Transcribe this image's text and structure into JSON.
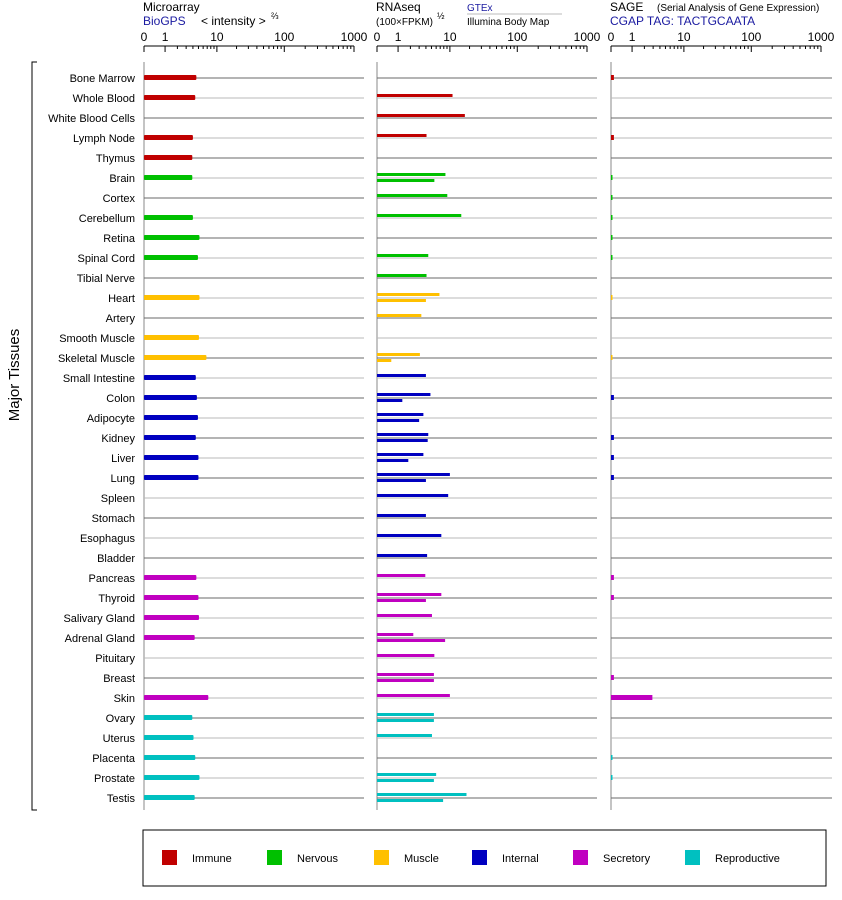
{
  "y_axis_label": "Major Tissues",
  "panels": {
    "microarray": {
      "title": "Microarray",
      "source": "BioGPS",
      "unit": "< intensity >",
      "unit_exp": "⅔"
    },
    "rnaseq": {
      "title": "RNAseq",
      "unit": "(100×FPKM)",
      "unit_exp": "½",
      "source_a": "GTEx",
      "source_b": "Illumina Body Map"
    },
    "sage": {
      "title": "SAGE",
      "subtitle": "(Serial Analysis of Gene Expression)",
      "tag": "CGAP  TAG: TACTGCAATA"
    }
  },
  "tick_labels": [
    "0",
    "1",
    "10",
    "100",
    "1000"
  ],
  "legend": [
    {
      "name": "Immune",
      "color": "#c00000"
    },
    {
      "name": "Nervous",
      "color": "#00c000"
    },
    {
      "name": "Muscle",
      "color": "#ffc000"
    },
    {
      "name": "Internal",
      "color": "#0000c0"
    },
    {
      "name": "Secretory",
      "color": "#c000c0"
    },
    {
      "name": "Reproductive",
      "color": "#00c0c0"
    }
  ],
  "chart_data": {
    "type": "bar",
    "orientation": "horizontal",
    "x_scale": "log",
    "xlim": [
      0,
      1000
    ],
    "tissues": [
      {
        "name": "Bone Marrow",
        "group": "Immune",
        "microarray": 4.6,
        "rnaseq": [],
        "sage": 0.1
      },
      {
        "name": "Whole Blood",
        "group": "Immune",
        "microarray": 4.4,
        "rnaseq": [
          11
        ],
        "sage": 0
      },
      {
        "name": "White Blood Cells",
        "group": "Immune",
        "microarray": null,
        "rnaseq": [
          17
        ],
        "sage": 0
      },
      {
        "name": "Lymph Node",
        "group": "Immune",
        "microarray": 4.0,
        "rnaseq": [
          4.1
        ],
        "sage": 0.1
      },
      {
        "name": "Thymus",
        "group": "Immune",
        "microarray": 3.9,
        "rnaseq": [],
        "sage": 0
      },
      {
        "name": "Brain",
        "group": "Nervous",
        "microarray": 3.9,
        "rnaseq": [
          8.5,
          5.6
        ],
        "sage": 0.05
      },
      {
        "name": "Cortex",
        "group": "Nervous",
        "microarray": null,
        "rnaseq": [
          9.1
        ],
        "sage": 0.05
      },
      {
        "name": "Cerebellum",
        "group": "Nervous",
        "microarray": 4.0,
        "rnaseq": [
          15
        ],
        "sage": 0.05
      },
      {
        "name": "Retina",
        "group": "Nervous",
        "microarray": 5.2,
        "rnaseq": [],
        "sage": 0.05
      },
      {
        "name": "Spinal Cord",
        "group": "Nervous",
        "microarray": 4.9,
        "rnaseq": [
          4.4
        ],
        "sage": 0.05
      },
      {
        "name": "Tibial Nerve",
        "group": "Nervous",
        "microarray": null,
        "rnaseq": [
          4.1
        ],
        "sage": 0
      },
      {
        "name": "Heart",
        "group": "Muscle",
        "microarray": 5.2,
        "rnaseq": [
          6.8,
          4.0
        ],
        "sage": 0.03
      },
      {
        "name": "Artery",
        "group": "Muscle",
        "microarray": null,
        "rnaseq": [
          3.3
        ],
        "sage": 0
      },
      {
        "name": "Smooth Muscle",
        "group": "Muscle",
        "microarray": 5.1,
        "rnaseq": [],
        "sage": 0
      },
      {
        "name": "Skeletal Muscle",
        "group": "Muscle",
        "microarray": 6.8,
        "rnaseq": [
          3.1,
          0.6
        ],
        "sage": 0.03
      },
      {
        "name": "Small Intestine",
        "group": "Internal",
        "microarray": 4.5,
        "rnaseq": [
          4.0
        ],
        "sage": 0
      },
      {
        "name": "Colon",
        "group": "Internal",
        "microarray": 4.7,
        "rnaseq": [
          4.8,
          1.3
        ],
        "sage": 0.1
      },
      {
        "name": "Adipocyte",
        "group": "Internal",
        "microarray": 4.9,
        "rnaseq": [
          3.6,
          3.0
        ],
        "sage": 0
      },
      {
        "name": "Kidney",
        "group": "Internal",
        "microarray": 4.5,
        "rnaseq": [
          4.4,
          4.3
        ],
        "sage": 0.1
      },
      {
        "name": "Liver",
        "group": "Internal",
        "microarray": 5.0,
        "rnaseq": [
          3.6,
          1.8
        ],
        "sage": 0.1
      },
      {
        "name": "Lung",
        "group": "Internal",
        "microarray": 5.0,
        "rnaseq": [
          10,
          4.0
        ],
        "sage": 0.1
      },
      {
        "name": "Spleen",
        "group": "Internal",
        "microarray": null,
        "rnaseq": [
          9.4
        ],
        "sage": 0
      },
      {
        "name": "Stomach",
        "group": "Internal",
        "microarray": null,
        "rnaseq": [
          4.0
        ],
        "sage": 0
      },
      {
        "name": "Esophagus",
        "group": "Internal",
        "microarray": null,
        "rnaseq": [
          7.3
        ],
        "sage": 0
      },
      {
        "name": "Bladder",
        "group": "Internal",
        "microarray": null,
        "rnaseq": [
          4.2
        ],
        "sage": 0
      },
      {
        "name": "Pancreas",
        "group": "Secretory",
        "microarray": 4.6,
        "rnaseq": [
          3.9
        ],
        "sage": 0.1
      },
      {
        "name": "Thyroid",
        "group": "Secretory",
        "microarray": 5.0,
        "rnaseq": [
          7.3,
          4.0
        ],
        "sage": 0.1
      },
      {
        "name": "Salivary Gland",
        "group": "Secretory",
        "microarray": 5.1,
        "rnaseq": [
          5.1
        ],
        "sage": 0
      },
      {
        "name": "Adrenal Gland",
        "group": "Secretory",
        "microarray": 4.3,
        "rnaseq": [
          2.3,
          8.4
        ],
        "sage": 0
      },
      {
        "name": "Pituitary",
        "group": "Secretory",
        "microarray": null,
        "rnaseq": [
          5.6
        ],
        "sage": 0
      },
      {
        "name": "Breast",
        "group": "Secretory",
        "microarray": null,
        "rnaseq": [
          5.5,
          5.5
        ],
        "sage": 0.1
      },
      {
        "name": "Skin",
        "group": "Secretory",
        "microarray": 7.3,
        "rnaseq": [
          10
        ],
        "sage": 2.9
      },
      {
        "name": "Ovary",
        "group": "Reproductive",
        "microarray": 3.9,
        "rnaseq": [
          5.5,
          5.5
        ],
        "sage": 0
      },
      {
        "name": "Uterus",
        "group": "Reproductive",
        "microarray": 4.1,
        "rnaseq": [
          5.1
        ],
        "sage": 0
      },
      {
        "name": "Placenta",
        "group": "Reproductive",
        "microarray": 4.4,
        "rnaseq": [],
        "sage": 0.05
      },
      {
        "name": "Prostate",
        "group": "Reproductive",
        "microarray": 5.2,
        "rnaseq": [
          6.0,
          5.5
        ],
        "sage": 0.05
      },
      {
        "name": "Testis",
        "group": "Reproductive",
        "microarray": 4.3,
        "rnaseq": [
          18,
          7.8
        ],
        "sage": 0
      }
    ]
  }
}
